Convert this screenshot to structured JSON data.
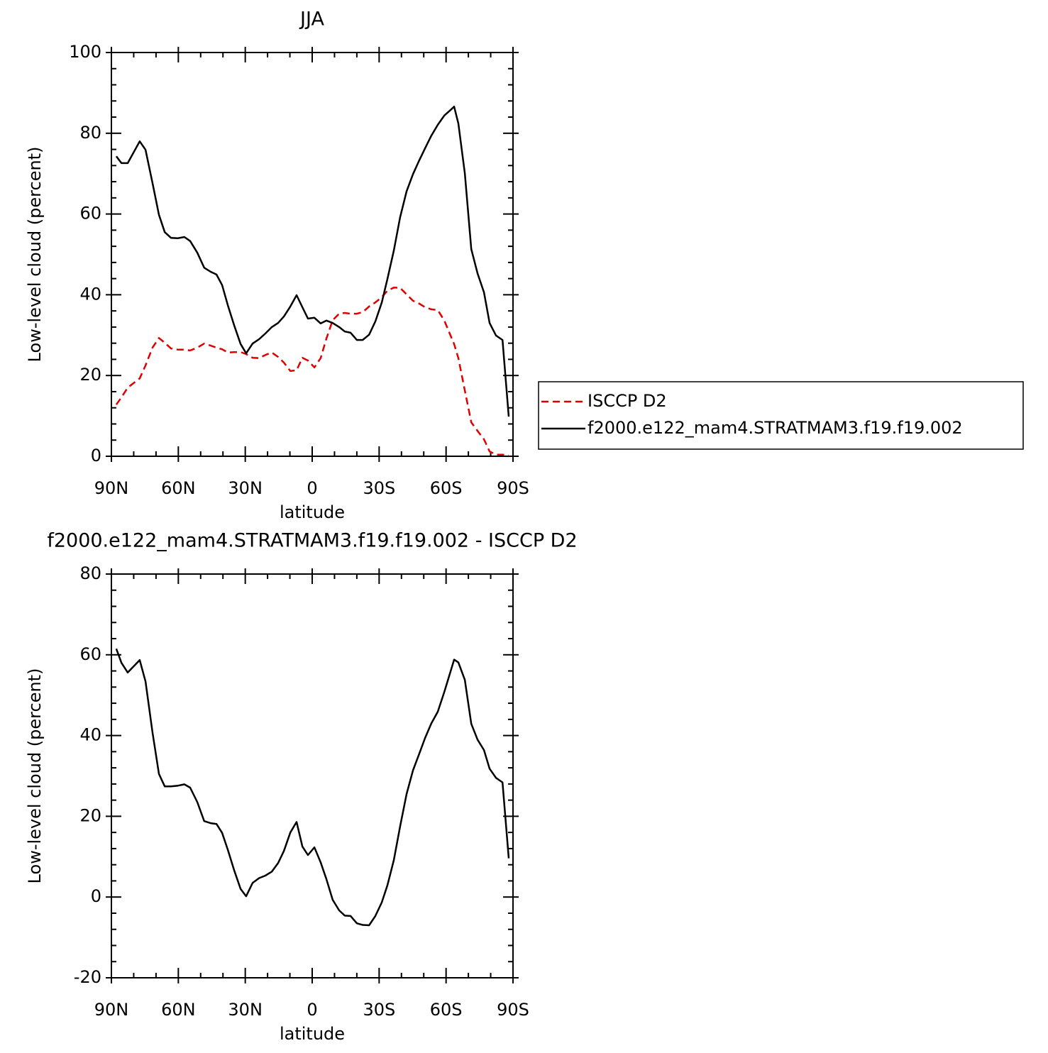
{
  "chart_data": [
    {
      "type": "line",
      "title": "JJA",
      "xlabel": "latitude",
      "ylabel": "Low-level cloud (percent)",
      "x": [
        87.8,
        85.5,
        82.7,
        77.3,
        74.7,
        71.6,
        68.7,
        66.1,
        63.3,
        60.1,
        57.3,
        54.7,
        51.5,
        48.4,
        45.5,
        42.9,
        40.4,
        37.8,
        35,
        32.1,
        29.6,
        26.7,
        23.8,
        21,
        18.1,
        15.3,
        12.7,
        9.8,
        7,
        4.4,
        1.9,
        -1,
        -3.8,
        -6.4,
        -9.2,
        -12.1,
        -14.6,
        -17.2,
        -20,
        -22.6,
        -25.5,
        -28.3,
        -31.2,
        -33.7,
        -36.6,
        -39.4,
        -42.3,
        -45.2,
        -48,
        -50.6,
        -53.4,
        -56.3,
        -59.2,
        -62.3,
        -63.6,
        -65.5,
        -68.4,
        -71.3,
        -74.1,
        -77,
        -79.5,
        -82.4,
        -85.3,
        -88.1
      ],
      "series": [
        {
          "name": "ISCCP D2",
          "color": "#e00000",
          "linestyle": "dashed",
          "values": [
            12.8,
            14.6,
            17,
            19.3,
            22.5,
            26.9,
            29.3,
            28.1,
            26.7,
            26.4,
            26.4,
            26.2,
            26.9,
            27.9,
            27.4,
            26.9,
            26.5,
            25.7,
            25.8,
            25.8,
            25.3,
            24.4,
            24.3,
            25.1,
            25.7,
            24.6,
            23.2,
            21.1,
            21.3,
            24.4,
            23.7,
            22,
            24.3,
            29.2,
            33.7,
            35.3,
            35.5,
            35.3,
            35.3,
            35.7,
            37.1,
            38.1,
            39.4,
            41,
            41.8,
            41.7,
            40.1,
            38.5,
            37.8,
            36.9,
            36.4,
            36.2,
            33.6,
            29.5,
            27.8,
            24.3,
            16.3,
            8.4,
            6.3,
            4.2,
            1.2,
            0.4,
            0.4,
            0.2
          ]
        },
        {
          "name": "f2000.e122_mam4.STRATMAM3.f19.f19.002",
          "color": "#000000",
          "linestyle": "solid",
          "values": [
            74.3,
            72.6,
            72.6,
            78,
            75.9,
            67.7,
            59.8,
            55.5,
            54.1,
            54,
            54.3,
            53.3,
            50.4,
            46.7,
            45.7,
            45,
            42.4,
            37.4,
            32.5,
            27.8,
            25.5,
            27.9,
            29,
            30.4,
            32,
            33,
            34.6,
            37.1,
            39.9,
            36.9,
            34.1,
            34.3,
            32.9,
            33.6,
            33,
            32,
            30.9,
            30.6,
            28.8,
            28.8,
            30.1,
            33.4,
            38.1,
            43.9,
            51,
            59.2,
            65.6,
            69.9,
            73.3,
            76.3,
            79.4,
            82.1,
            84.4,
            85.9,
            86.6,
            82.4,
            70.1,
            51.3,
            45.3,
            40.6,
            33,
            29.9,
            28.8,
            9.8
          ]
        }
      ],
      "xlim": [
        90,
        -90
      ],
      "xticks": [
        {
          "value": 90,
          "label": "90N"
        },
        {
          "value": 60,
          "label": "60N"
        },
        {
          "value": 30,
          "label": "30N"
        },
        0,
        {
          "value": -30,
          "label": "30S"
        },
        {
          "value": -60,
          "label": "60S"
        },
        {
          "value": -90,
          "label": "90S"
        }
      ],
      "ylim": [
        0,
        100
      ],
      "yticks": [
        0,
        20,
        40,
        60,
        80,
        100
      ],
      "legend": "right"
    },
    {
      "type": "line",
      "title": "f2000.e122_mam4.STRATMAM3.f19.f19.002 - ISCCP D2",
      "xlabel": "latitude",
      "ylabel": "Low-level cloud (percent)",
      "x": [
        87.8,
        85.5,
        82.7,
        77.3,
        74.7,
        71.6,
        68.7,
        66.1,
        63.3,
        60.1,
        57.3,
        54.7,
        51.5,
        48.4,
        45.5,
        42.9,
        40.4,
        37.8,
        35,
        32.1,
        29.6,
        26.7,
        23.8,
        21,
        18.1,
        15.3,
        12.7,
        9.8,
        7,
        4.4,
        1.9,
        -1,
        -3.8,
        -6.4,
        -9.2,
        -12.1,
        -14.6,
        -17.2,
        -20,
        -22.6,
        -25.5,
        -28.3,
        -31.2,
        -33.7,
        -36.6,
        -39.4,
        -42.3,
        -45.2,
        -48,
        -50.6,
        -53.4,
        -56.3,
        -59.2,
        -62.3,
        -63.6,
        -65.5,
        -68.4,
        -71.3,
        -74.1,
        -77,
        -79.5,
        -82.4,
        -85.3,
        -88.1
      ],
      "series": [
        {
          "color": "#000000",
          "linestyle": "solid",
          "values": [
            61.5,
            58,
            55.6,
            58.7,
            53.4,
            40.8,
            30.5,
            27.4,
            27.4,
            27.6,
            27.9,
            27.1,
            23.5,
            18.8,
            18.3,
            18.1,
            15.9,
            11.7,
            6.7,
            2,
            0.2,
            3.5,
            4.7,
            5.3,
            6.3,
            8.4,
            11.4,
            16,
            18.6,
            12.5,
            10.4,
            12.3,
            8.6,
            4.4,
            -0.7,
            -3.3,
            -4.6,
            -4.7,
            -6.5,
            -6.9,
            -7,
            -4.7,
            -1.3,
            2.9,
            9.2,
            17.5,
            25.5,
            31.4,
            35.5,
            39.4,
            43,
            45.9,
            50.8,
            56.4,
            58.8,
            58.1,
            53.8,
            42.9,
            39,
            36.4,
            31.8,
            29.5,
            28.4,
            9.6
          ]
        }
      ],
      "xlim": [
        90,
        -90
      ],
      "xticks": [
        {
          "value": 90,
          "label": "90N"
        },
        {
          "value": 60,
          "label": "60N"
        },
        {
          "value": 30,
          "label": "30N"
        },
        0,
        {
          "value": -30,
          "label": "30S"
        },
        {
          "value": -60,
          "label": "60S"
        },
        {
          "value": -90,
          "label": "90S"
        }
      ],
      "ylim": [
        -20,
        80
      ],
      "yticks": [
        -20,
        0,
        20,
        40,
        60,
        80
      ]
    }
  ]
}
